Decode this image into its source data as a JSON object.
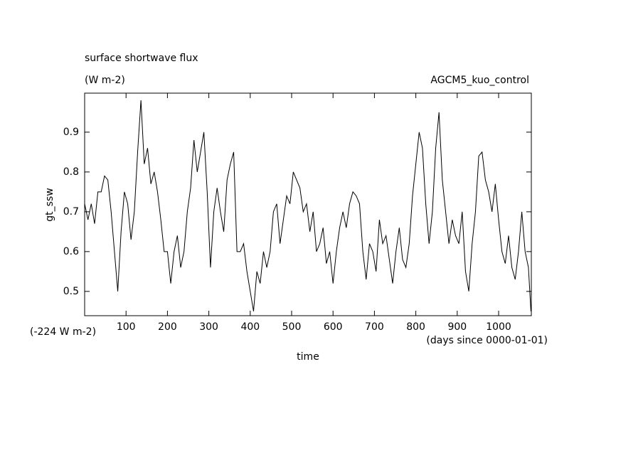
{
  "chart_data": {
    "type": "line",
    "title": "surface shortwave flux",
    "subtitle": "(W m-2)",
    "annotation": "AGCM5_kuo_control",
    "offset_label": "(-224 W m-2)",
    "x_unit_label": "(days since 0000-01-01)",
    "xlabel": "time",
    "ylabel": "gt_ssw",
    "color": "#000000",
    "xlim": [
      0,
      1079
    ],
    "ylim": [
      0.439,
      0.998
    ],
    "xticks": [
      100,
      200,
      300,
      400,
      500,
      600,
      700,
      800,
      900,
      1000
    ],
    "yticks": [
      0.5,
      0.6,
      0.7,
      0.8,
      0.9
    ],
    "x": [
      0,
      8,
      16,
      24,
      32,
      40,
      48,
      56,
      64,
      72,
      80,
      88,
      96,
      104,
      112,
      120,
      128,
      136,
      144,
      152,
      160,
      168,
      176,
      184,
      192,
      200,
      208,
      216,
      224,
      232,
      240,
      248,
      256,
      264,
      272,
      280,
      288,
      296,
      304,
      312,
      320,
      328,
      336,
      344,
      352,
      360,
      368,
      376,
      384,
      392,
      400,
      408,
      416,
      424,
      432,
      440,
      448,
      456,
      464,
      472,
      480,
      488,
      496,
      504,
      512,
      520,
      528,
      536,
      544,
      552,
      560,
      568,
      576,
      584,
      592,
      600,
      608,
      616,
      624,
      632,
      640,
      648,
      656,
      664,
      672,
      680,
      688,
      696,
      704,
      712,
      720,
      728,
      736,
      744,
      752,
      760,
      768,
      776,
      784,
      792,
      800,
      808,
      816,
      824,
      832,
      840,
      848,
      856,
      864,
      872,
      880,
      888,
      896,
      904,
      912,
      920,
      928,
      936,
      944,
      952,
      960,
      968,
      976,
      984,
      992,
      1000,
      1008,
      1016,
      1024,
      1032,
      1040,
      1048,
      1056,
      1064,
      1072,
      1078
    ],
    "values": [
      0.72,
      0.68,
      0.72,
      0.67,
      0.75,
      0.75,
      0.79,
      0.78,
      0.7,
      0.6,
      0.5,
      0.65,
      0.75,
      0.72,
      0.63,
      0.7,
      0.85,
      0.98,
      0.82,
      0.86,
      0.77,
      0.8,
      0.75,
      0.68,
      0.6,
      0.6,
      0.52,
      0.6,
      0.64,
      0.56,
      0.6,
      0.7,
      0.76,
      0.88,
      0.8,
      0.85,
      0.9,
      0.75,
      0.56,
      0.7,
      0.76,
      0.7,
      0.65,
      0.78,
      0.82,
      0.85,
      0.6,
      0.6,
      0.62,
      0.55,
      0.5,
      0.45,
      0.55,
      0.52,
      0.6,
      0.56,
      0.6,
      0.7,
      0.72,
      0.62,
      0.68,
      0.74,
      0.72,
      0.8,
      0.78,
      0.76,
      0.7,
      0.72,
      0.65,
      0.7,
      0.6,
      0.62,
      0.66,
      0.57,
      0.6,
      0.52,
      0.6,
      0.66,
      0.7,
      0.66,
      0.72,
      0.75,
      0.74,
      0.72,
      0.6,
      0.53,
      0.62,
      0.6,
      0.55,
      0.68,
      0.62,
      0.64,
      0.58,
      0.52,
      0.6,
      0.66,
      0.58,
      0.56,
      0.62,
      0.74,
      0.82,
      0.9,
      0.86,
      0.72,
      0.62,
      0.7,
      0.86,
      0.95,
      0.78,
      0.7,
      0.62,
      0.68,
      0.64,
      0.62,
      0.7,
      0.55,
      0.5,
      0.62,
      0.7,
      0.84,
      0.85,
      0.78,
      0.75,
      0.7,
      0.77,
      0.68,
      0.6,
      0.57,
      0.64,
      0.56,
      0.53,
      0.6,
      0.7,
      0.6,
      0.56,
      0.45
    ]
  }
}
